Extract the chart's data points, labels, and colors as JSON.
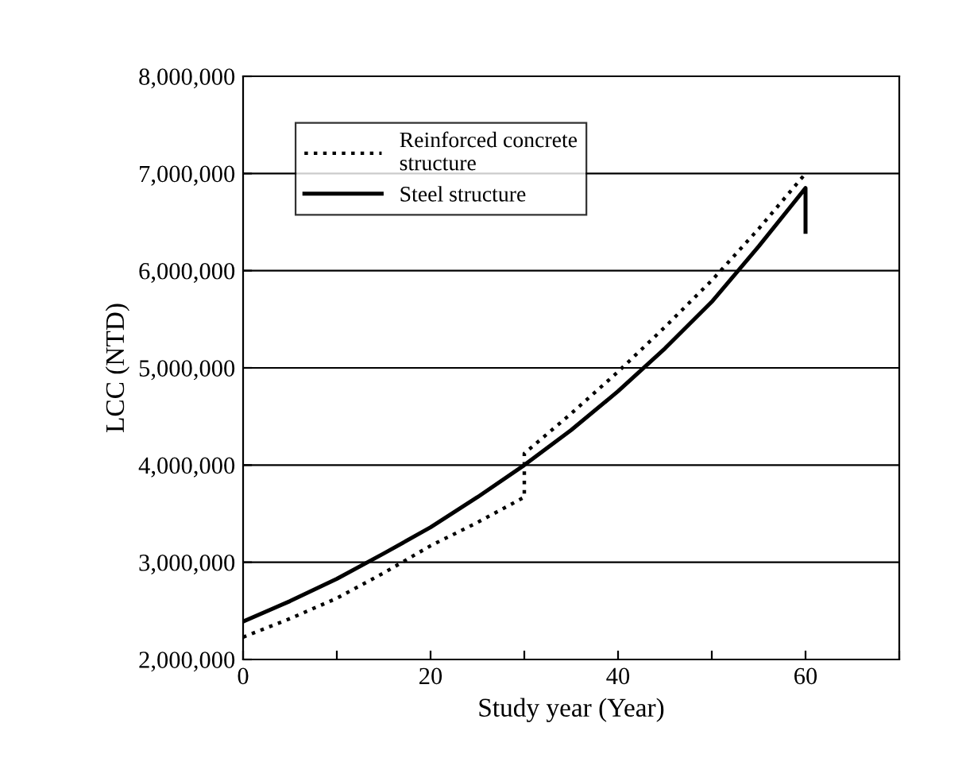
{
  "chart_data": {
    "type": "line",
    "xlabel": "Study year (Year)",
    "ylabel": "LCC (NTD)",
    "xlim": [
      0,
      70
    ],
    "xticks": [
      0,
      {
        "value": 10,
        "label": null
      },
      20,
      {
        "value": 30,
        "label": null
      },
      40,
      {
        "value": 50,
        "label": null
      },
      60,
      {
        "value": 70,
        "label": null
      }
    ],
    "ylim": [
      2000000,
      8000000
    ],
    "yticks": [
      {
        "value": 2000000,
        "label": "2,000,000"
      },
      {
        "value": 3000000,
        "label": "3,000,000"
      },
      {
        "value": 4000000,
        "label": "4,000,000"
      },
      {
        "value": 5000000,
        "label": "5,000,000"
      },
      {
        "value": 6000000,
        "label": "6,000,000"
      },
      {
        "value": 7000000,
        "label": "7,000,000"
      },
      {
        "value": 8000000,
        "label": "8,000,000"
      }
    ],
    "grid": "y",
    "legend": "top left",
    "series": [
      {
        "name": "Reinforced concrete\nstructure",
        "color": "#000000",
        "line_style": "dotted",
        "x": [
          0,
          5,
          10,
          15,
          20,
          25,
          30,
          30,
          35,
          40,
          45,
          50,
          55,
          60
        ],
        "values": [
          2230000,
          2420000,
          2630000,
          2890000,
          3170000,
          3410000,
          3670000,
          4120000,
          4530000,
          4960000,
          5420000,
          5900000,
          6430000,
          7000000
        ]
      },
      {
        "name": "Steel structure",
        "color": "#000000",
        "line_style": "solid",
        "x": [
          0,
          5,
          10,
          15,
          20,
          25,
          30,
          35,
          40,
          45,
          50,
          55,
          60,
          60
        ],
        "values": [
          2390000,
          2600000,
          2830000,
          3090000,
          3360000,
          3670000,
          4000000,
          4360000,
          4760000,
          5200000,
          5680000,
          6250000,
          6850000,
          6400000
        ]
      }
    ]
  }
}
